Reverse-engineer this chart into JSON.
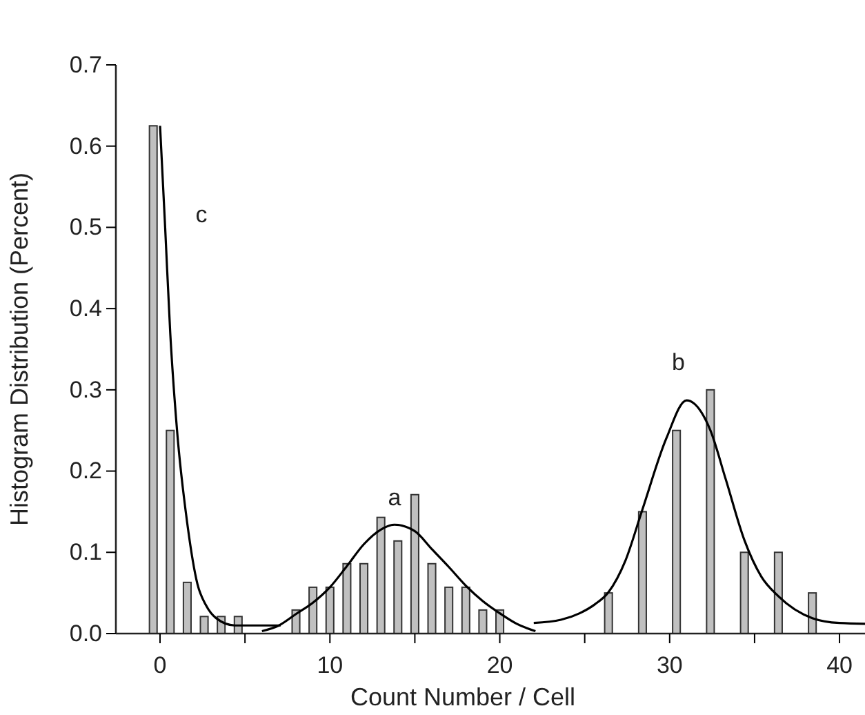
{
  "chart_data": {
    "type": "bar",
    "xlabel": "Count Number / Cell",
    "ylabel": "Histogram Distribution (Percent)",
    "xlim": [
      -2.6,
      41.5
    ],
    "xticks": [
      0,
      {
        "value": 5,
        "label": null
      },
      10,
      {
        "value": 15,
        "label": null
      },
      20,
      {
        "value": 25,
        "label": null
      },
      30,
      {
        "value": 35,
        "label": null
      },
      40
    ],
    "ylim": [
      0,
      0.7
    ],
    "yticks": [
      {
        "value": 0,
        "label": "0.0"
      },
      0.1,
      0.2,
      0.3,
      0.4,
      0.5,
      0.6,
      0.7
    ],
    "series": [
      {
        "color": "#c0c0c0",
        "x": [
          -0.4,
          0.6,
          1.6,
          2.6,
          3.6,
          4.6,
          8,
          9,
          10,
          11,
          12,
          13,
          14,
          15,
          16,
          17,
          18,
          19,
          20,
          26.4,
          28.4,
          30.4,
          32.4,
          34.4,
          36.4,
          38.4
        ],
        "values": [
          0.625,
          0.25,
          0.063,
          0.021,
          0.021,
          0.021,
          0.029,
          0.057,
          0.057,
          0.086,
          0.086,
          0.143,
          0.114,
          0.171,
          0.086,
          0.057,
          0.057,
          0.029,
          0.029,
          0.05,
          0.15,
          0.25,
          0.3,
          0.1,
          0.1,
          0.05
        ]
      },
      {
        "type": "line",
        "color": "#000000",
        "x": [
          0,
          0.3,
          0.6,
          1,
          1.6,
          2.2,
          2.7,
          3.3,
          4.4,
          7.1
        ],
        "values": [
          0.625,
          0.5,
          0.37,
          0.25,
          0.136,
          0.061,
          0.035,
          0.019,
          0.01,
          0.01
        ]
      },
      {
        "type": "line",
        "color": "#000000",
        "x": [
          6,
          7,
          8,
          9,
          10,
          11,
          12,
          13,
          13.8,
          15,
          16,
          17,
          18,
          19,
          20,
          21,
          22.1
        ],
        "values": [
          0.003,
          0.01,
          0.024,
          0.038,
          0.057,
          0.083,
          0.11,
          0.128,
          0.134,
          0.126,
          0.104,
          0.082,
          0.059,
          0.04,
          0.025,
          0.012,
          0.003
        ]
      },
      {
        "type": "line",
        "color": "#000000",
        "x": [
          22,
          23.6,
          24.7,
          25.6,
          26.4,
          27.4,
          28.4,
          29.8,
          31,
          32.4,
          33.3,
          34.4,
          35.4,
          36.4,
          38.4,
          40,
          41.5
        ],
        "values": [
          0.013,
          0.017,
          0.025,
          0.036,
          0.051,
          0.09,
          0.153,
          0.24,
          0.287,
          0.25,
          0.19,
          0.115,
          0.07,
          0.046,
          0.019,
          0.013,
          0.012
        ]
      }
    ],
    "annotations": [
      "c",
      "a",
      "b"
    ],
    "grid": false,
    "marker": "none",
    "line_style": "solid"
  }
}
